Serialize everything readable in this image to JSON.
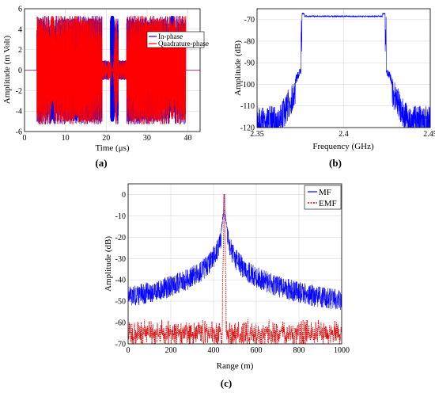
{
  "chart_data": [
    {
      "id": "a",
      "type": "line",
      "panel_label": "(a)",
      "title": "",
      "xlabel": "Time (μs)",
      "ylabel": "Amplitude (m Volt)",
      "xlim": [
        0,
        43
      ],
      "ylim": [
        -6,
        6
      ],
      "xticks": [
        0,
        10,
        20,
        30,
        40
      ],
      "yticks": [
        -6,
        -4,
        -2,
        0,
        2,
        4,
        6
      ],
      "grid": true,
      "legend_position": "top-right",
      "pulse_window": [
        3,
        39.5
      ],
      "envelope_amplitude": 5.3,
      "center_gaps": [
        19,
        21,
        23,
        25
      ],
      "series": [
        {
          "name": "In-phase",
          "color": "#0000ff",
          "line_style": "solid"
        },
        {
          "name": "Quadrature-phase",
          "color": "#ff0000",
          "line_style": "solid"
        }
      ]
    },
    {
      "id": "b",
      "type": "line",
      "panel_label": "(b)",
      "title": "",
      "xlabel": "Frequency (GHz)",
      "ylabel": "Amplitude (dB)",
      "xlim": [
        2.35,
        2.45
      ],
      "ylim": [
        -120,
        -65
      ],
      "xticks": [
        2.35,
        2.4,
        2.45
      ],
      "xtick_labels": [
        "2.35",
        "2.4",
        "2.45"
      ],
      "yticks": [
        -120,
        -110,
        -100,
        -90,
        -80,
        -70
      ],
      "grid": true,
      "passband_ghz": [
        2.376,
        2.424
      ],
      "passband_level_db": -68.5,
      "noise_floor_db": -110,
      "series": [
        {
          "color": "#0000ff",
          "line_style": "solid"
        }
      ]
    },
    {
      "id": "c",
      "type": "line",
      "panel_label": "(c)",
      "title": "",
      "xlabel": "Range (m)",
      "ylabel": "Amplitude (dB)",
      "xlim": [
        0,
        1000
      ],
      "ylim": [
        -70,
        5
      ],
      "xticks": [
        0,
        200,
        400,
        600,
        800,
        1000
      ],
      "yticks": [
        -70,
        -60,
        -50,
        -40,
        -30,
        -20,
        -10,
        0
      ],
      "grid": true,
      "legend_position": "top-right",
      "peak_range_m": 450,
      "peak_db": 0,
      "series": [
        {
          "name": "MF",
          "color": "#0000ff",
          "line_style": "solid",
          "floor_db": -55
        },
        {
          "name": "EMF",
          "color": "#e00000",
          "line_style": "dotted",
          "floor_db": -62
        }
      ]
    }
  ]
}
